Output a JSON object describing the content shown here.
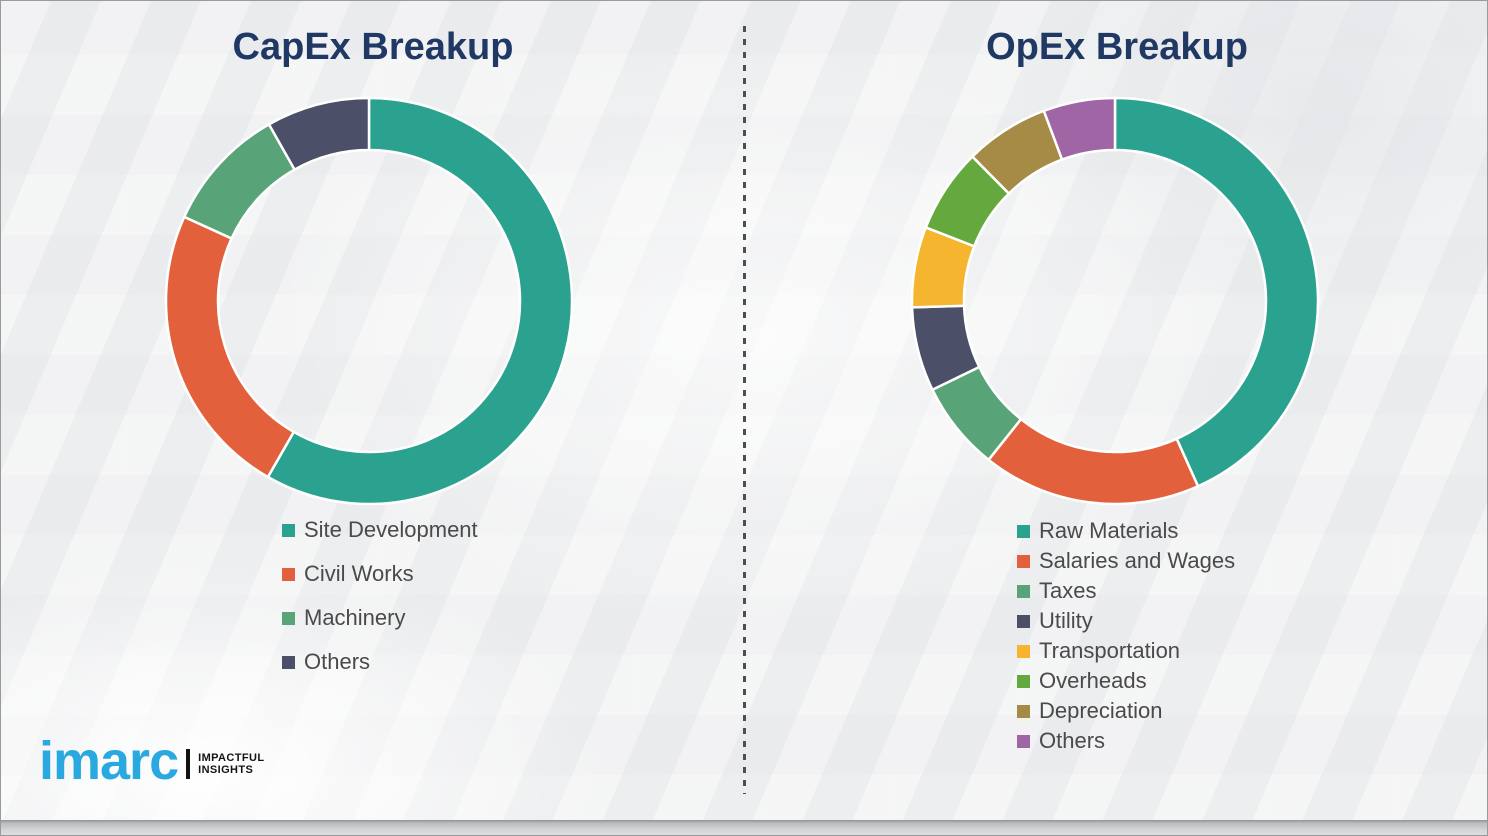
{
  "theme": {
    "title_color": "#1F3864",
    "legend_text_color": "#4A4A4A",
    "background_color": "#F0F1F2",
    "divider_color": "#4B4F52"
  },
  "chart_data": [
    {
      "type": "pie",
      "variant": "donut",
      "title": "CapEx Breakup",
      "start_angle": "top",
      "direction": "clockwise",
      "legend_position": "below-left",
      "values_are_estimated_percent": true,
      "segments": [
        {
          "label": "Site Development",
          "value": 58.3,
          "color": "#2BA28F"
        },
        {
          "label": "Civil Works",
          "value": 23.5,
          "color": "#E2613C"
        },
        {
          "label": "Machinery",
          "value": 10.0,
          "color": "#58A478"
        },
        {
          "label": "Others",
          "value": 8.2,
          "color": "#4B4F68"
        }
      ]
    },
    {
      "type": "pie",
      "variant": "donut",
      "title": "OpEx Breakup",
      "start_angle": "top",
      "direction": "clockwise",
      "legend_position": "below-left",
      "values_are_estimated_percent": true,
      "segments": [
        {
          "label": "Raw Materials",
          "value": 43.3,
          "color": "#2BA28F"
        },
        {
          "label": "Salaries and Wages",
          "value": 17.4,
          "color": "#E2613C"
        },
        {
          "label": "Taxes",
          "value": 7.1,
          "color": "#58A478"
        },
        {
          "label": "Utility",
          "value": 6.7,
          "color": "#4B4F68"
        },
        {
          "label": "Transportation",
          "value": 6.4,
          "color": "#F5B52E"
        },
        {
          "label": "Overheads",
          "value": 6.7,
          "color": "#64A83E"
        },
        {
          "label": "Depreciation",
          "value": 6.7,
          "color": "#A58B45"
        },
        {
          "label": "Others",
          "value": 5.7,
          "color": "#9F65A5"
        }
      ]
    }
  ],
  "logo": {
    "brand": "imarc",
    "brand_color": "#29A9E0",
    "tagline_line1": "IMPACTFUL",
    "tagline_line2": "INSIGHTS"
  }
}
